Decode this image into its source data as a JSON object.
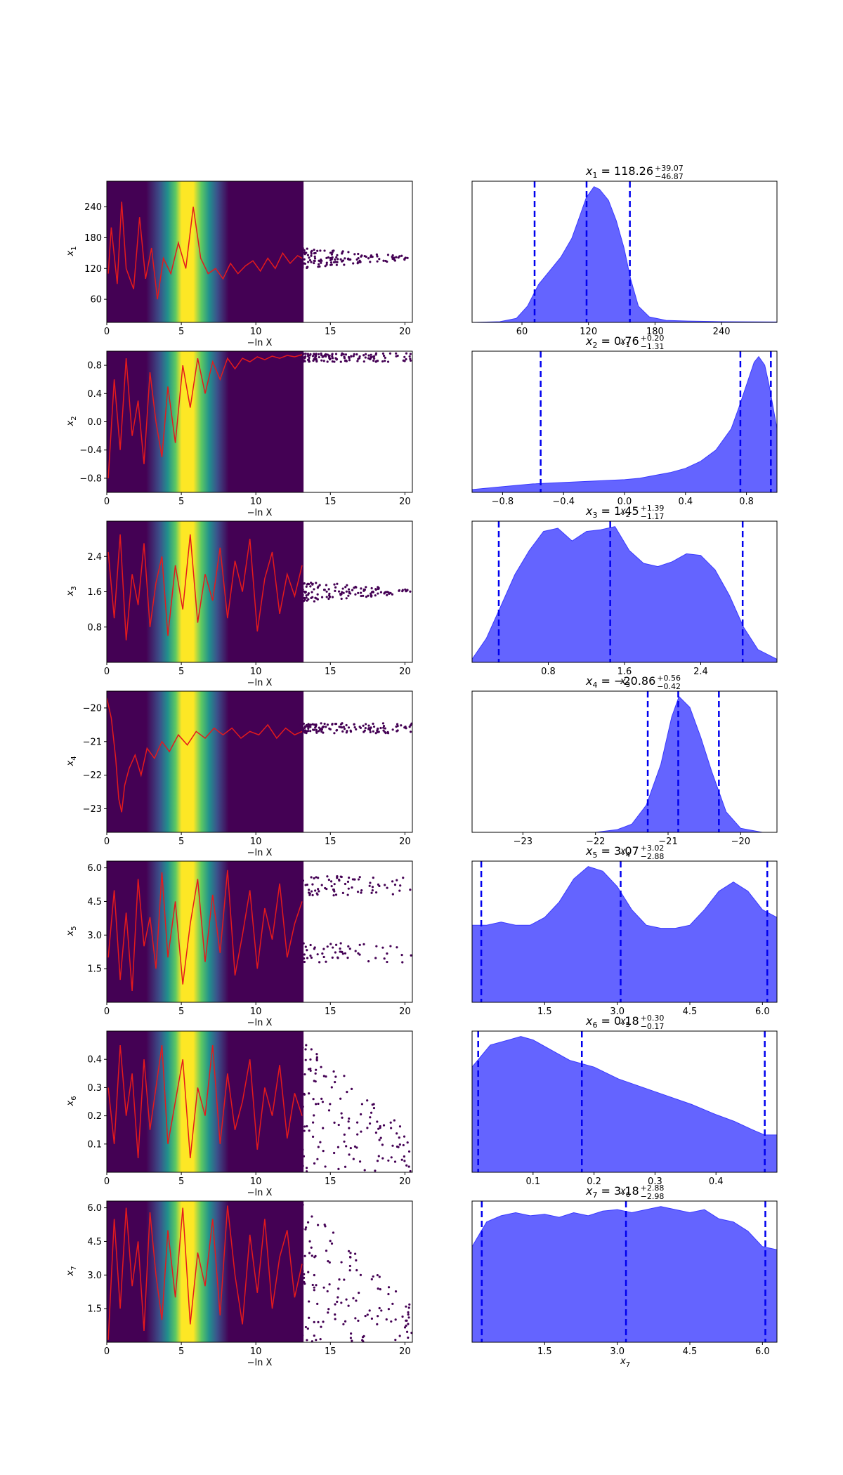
{
  "chart_data": [
    {
      "type": "scatter",
      "param": "x1",
      "xlabel": "−ln X",
      "ylabel": "x1",
      "xlim": [
        0,
        20.5
      ],
      "ylim": [
        15,
        290
      ],
      "xticks": [
        "0",
        "5",
        "10",
        "15",
        "20"
      ],
      "yticks": [
        "60",
        "120",
        "180",
        "240"
      ],
      "trace": [
        [
          0.1,
          110
        ],
        [
          0.3,
          200
        ],
        [
          0.7,
          90
        ],
        [
          1.0,
          250
        ],
        [
          1.3,
          120
        ],
        [
          1.8,
          80
        ],
        [
          2.2,
          220
        ],
        [
          2.6,
          100
        ],
        [
          3.0,
          160
        ],
        [
          3.4,
          60
        ],
        [
          3.8,
          140
        ],
        [
          4.3,
          110
        ],
        [
          4.8,
          170
        ],
        [
          5.3,
          120
        ],
        [
          5.8,
          240
        ],
        [
          6.3,
          140
        ],
        [
          6.8,
          110
        ],
        [
          7.3,
          120
        ],
        [
          7.8,
          100
        ],
        [
          8.3,
          130
        ],
        [
          8.8,
          110
        ],
        [
          9.3,
          125
        ],
        [
          9.8,
          135
        ],
        [
          10.3,
          115
        ],
        [
          10.8,
          140
        ],
        [
          11.3,
          120
        ],
        [
          11.8,
          150
        ],
        [
          12.3,
          130
        ],
        [
          12.8,
          145
        ],
        [
          13.1,
          140
        ]
      ]
    },
    {
      "type": "scatter",
      "param": "x2",
      "xlabel": "−ln X",
      "ylabel": "x2",
      "xlim": [
        0,
        20.5
      ],
      "ylim": [
        -1,
        1
      ],
      "xticks": [
        "0",
        "5",
        "10",
        "15",
        "20"
      ],
      "yticks": [
        "−0.8",
        "−0.4",
        "0.0",
        "0.4",
        "0.8"
      ],
      "trace": [
        [
          0.1,
          -0.8
        ],
        [
          0.5,
          0.6
        ],
        [
          0.9,
          -0.4
        ],
        [
          1.3,
          0.9
        ],
        [
          1.7,
          -0.2
        ],
        [
          2.1,
          0.3
        ],
        [
          2.5,
          -0.6
        ],
        [
          2.9,
          0.7
        ],
        [
          3.3,
          0.0
        ],
        [
          3.7,
          -0.5
        ],
        [
          4.1,
          0.5
        ],
        [
          4.6,
          -0.3
        ],
        [
          5.1,
          0.8
        ],
        [
          5.6,
          0.2
        ],
        [
          6.1,
          0.9
        ],
        [
          6.6,
          0.4
        ],
        [
          7.1,
          0.85
        ],
        [
          7.6,
          0.6
        ],
        [
          8.1,
          0.9
        ],
        [
          8.6,
          0.75
        ],
        [
          9.1,
          0.9
        ],
        [
          9.6,
          0.85
        ],
        [
          10.1,
          0.92
        ],
        [
          10.6,
          0.88
        ],
        [
          11.1,
          0.93
        ],
        [
          11.6,
          0.9
        ],
        [
          12.1,
          0.94
        ],
        [
          12.6,
          0.92
        ],
        [
          13.1,
          0.95
        ]
      ]
    },
    {
      "type": "scatter",
      "param": "x3",
      "xlabel": "−ln X",
      "ylabel": "x3",
      "xlim": [
        0,
        20.5
      ],
      "ylim": [
        0,
        3.2
      ],
      "xticks": [
        "0",
        "5",
        "10",
        "15",
        "20"
      ],
      "yticks": [
        "0.8",
        "1.6",
        "2.4"
      ],
      "trace": [
        [
          0.1,
          2.5
        ],
        [
          0.5,
          1.0
        ],
        [
          0.9,
          2.9
        ],
        [
          1.3,
          0.5
        ],
        [
          1.7,
          2.0
        ],
        [
          2.1,
          1.3
        ],
        [
          2.5,
          2.7
        ],
        [
          2.9,
          0.8
        ],
        [
          3.3,
          1.8
        ],
        [
          3.7,
          2.4
        ],
        [
          4.1,
          0.6
        ],
        [
          4.6,
          2.2
        ],
        [
          5.1,
          1.2
        ],
        [
          5.6,
          2.9
        ],
        [
          6.1,
          0.9
        ],
        [
          6.6,
          2.0
        ],
        [
          7.1,
          1.4
        ],
        [
          7.6,
          2.6
        ],
        [
          8.1,
          1.0
        ],
        [
          8.6,
          2.3
        ],
        [
          9.1,
          1.6
        ],
        [
          9.6,
          2.8
        ],
        [
          10.1,
          0.7
        ],
        [
          10.6,
          1.9
        ],
        [
          11.1,
          2.5
        ],
        [
          11.6,
          1.1
        ],
        [
          12.1,
          2.0
        ],
        [
          12.6,
          1.5
        ],
        [
          13.1,
          2.2
        ]
      ]
    },
    {
      "type": "scatter",
      "param": "x4",
      "xlabel": "−ln X",
      "ylabel": "x4",
      "xlim": [
        0,
        20.5
      ],
      "ylim": [
        -23.7,
        -19.5
      ],
      "xticks": [
        "0",
        "5",
        "10",
        "15",
        "20"
      ],
      "yticks": [
        "−23",
        "−22",
        "−21",
        "−20"
      ],
      "trace": [
        [
          0.0,
          -19.7
        ],
        [
          0.3,
          -20.3
        ],
        [
          0.6,
          -21.5
        ],
        [
          0.8,
          -22.7
        ],
        [
          1.0,
          -23.1
        ],
        [
          1.2,
          -22.3
        ],
        [
          1.5,
          -21.8
        ],
        [
          1.9,
          -21.4
        ],
        [
          2.3,
          -22.0
        ],
        [
          2.7,
          -21.2
        ],
        [
          3.2,
          -21.5
        ],
        [
          3.7,
          -21.0
        ],
        [
          4.2,
          -21.3
        ],
        [
          4.8,
          -20.8
        ],
        [
          5.4,
          -21.1
        ],
        [
          6.0,
          -20.7
        ],
        [
          6.6,
          -20.9
        ],
        [
          7.2,
          -20.6
        ],
        [
          7.8,
          -20.8
        ],
        [
          8.4,
          -20.6
        ],
        [
          9.0,
          -20.9
        ],
        [
          9.6,
          -20.7
        ],
        [
          10.2,
          -20.8
        ],
        [
          10.8,
          -20.5
        ],
        [
          11.4,
          -20.9
        ],
        [
          12.0,
          -20.6
        ],
        [
          12.6,
          -20.8
        ],
        [
          13.1,
          -20.7
        ]
      ]
    },
    {
      "type": "scatter",
      "param": "x5",
      "xlabel": "−ln X",
      "ylabel": "x5",
      "xlim": [
        0,
        20.5
      ],
      "ylim": [
        0,
        6.3
      ],
      "xticks": [
        "0",
        "5",
        "10",
        "15",
        "20"
      ],
      "yticks": [
        "1.5",
        "3.0",
        "4.5",
        "6.0"
      ],
      "trace": [
        [
          0.1,
          2.0
        ],
        [
          0.5,
          5.0
        ],
        [
          0.9,
          1.0
        ],
        [
          1.3,
          4.0
        ],
        [
          1.7,
          0.5
        ],
        [
          2.1,
          5.5
        ],
        [
          2.5,
          2.5
        ],
        [
          2.9,
          3.8
        ],
        [
          3.3,
          1.5
        ],
        [
          3.7,
          5.8
        ],
        [
          4.1,
          2.0
        ],
        [
          4.6,
          4.5
        ],
        [
          5.1,
          0.8
        ],
        [
          5.6,
          3.5
        ],
        [
          6.1,
          5.5
        ],
        [
          6.6,
          1.8
        ],
        [
          7.1,
          4.8
        ],
        [
          7.6,
          2.2
        ],
        [
          8.1,
          5.9
        ],
        [
          8.6,
          1.2
        ],
        [
          9.1,
          3.0
        ],
        [
          9.6,
          5.0
        ],
        [
          10.1,
          1.5
        ],
        [
          10.6,
          4.2
        ],
        [
          11.1,
          2.8
        ],
        [
          11.6,
          5.3
        ],
        [
          12.1,
          2.0
        ],
        [
          12.6,
          3.5
        ],
        [
          13.1,
          4.5
        ]
      ]
    },
    {
      "type": "scatter",
      "param": "x6",
      "xlabel": "−ln X",
      "ylabel": "x6",
      "xlim": [
        0,
        20.5
      ],
      "ylim": [
        0,
        0.5
      ],
      "xticks": [
        "0",
        "5",
        "10",
        "15",
        "20"
      ],
      "yticks": [
        "0.1",
        "0.2",
        "0.3",
        "0.4"
      ],
      "trace": [
        [
          0.1,
          0.3
        ],
        [
          0.5,
          0.1
        ],
        [
          0.9,
          0.45
        ],
        [
          1.3,
          0.2
        ],
        [
          1.7,
          0.35
        ],
        [
          2.1,
          0.05
        ],
        [
          2.5,
          0.4
        ],
        [
          2.9,
          0.15
        ],
        [
          3.3,
          0.3
        ],
        [
          3.7,
          0.45
        ],
        [
          4.1,
          0.1
        ],
        [
          4.6,
          0.25
        ],
        [
          5.1,
          0.4
        ],
        [
          5.6,
          0.05
        ],
        [
          6.1,
          0.3
        ],
        [
          6.6,
          0.2
        ],
        [
          7.1,
          0.45
        ],
        [
          7.6,
          0.1
        ],
        [
          8.1,
          0.35
        ],
        [
          8.6,
          0.15
        ],
        [
          9.1,
          0.25
        ],
        [
          9.6,
          0.4
        ],
        [
          10.1,
          0.08
        ],
        [
          10.6,
          0.3
        ],
        [
          11.1,
          0.2
        ],
        [
          11.6,
          0.38
        ],
        [
          12.1,
          0.12
        ],
        [
          12.6,
          0.28
        ],
        [
          13.1,
          0.2
        ]
      ]
    },
    {
      "type": "scatter",
      "param": "x7",
      "xlabel": "−ln X",
      "ylabel": "x7",
      "xlim": [
        0,
        20.5
      ],
      "ylim": [
        0,
        6.3
      ],
      "xticks": [
        "0",
        "5",
        "10",
        "15",
        "20"
      ],
      "yticks": [
        "1.5",
        "3.0",
        "4.5",
        "6.0"
      ],
      "trace": [
        [
          0.1,
          0.1
        ],
        [
          0.5,
          5.5
        ],
        [
          0.9,
          1.5
        ],
        [
          1.3,
          6.0
        ],
        [
          1.7,
          2.5
        ],
        [
          2.1,
          4.5
        ],
        [
          2.5,
          0.5
        ],
        [
          2.9,
          5.8
        ],
        [
          3.3,
          3.0
        ],
        [
          3.7,
          1.0
        ],
        [
          4.1,
          5.0
        ],
        [
          4.6,
          2.0
        ],
        [
          5.1,
          6.0
        ],
        [
          5.6,
          0.8
        ],
        [
          6.1,
          4.0
        ],
        [
          6.6,
          2.5
        ],
        [
          7.1,
          5.5
        ],
        [
          7.6,
          1.2
        ],
        [
          8.1,
          6.1
        ],
        [
          8.6,
          3.0
        ],
        [
          9.1,
          0.8
        ],
        [
          9.6,
          4.8
        ],
        [
          10.1,
          2.2
        ],
        [
          10.6,
          5.5
        ],
        [
          11.1,
          1.5
        ],
        [
          11.6,
          3.8
        ],
        [
          12.1,
          5.0
        ],
        [
          12.6,
          2.0
        ],
        [
          13.1,
          3.5
        ]
      ]
    },
    {
      "type": "area",
      "param": "x1",
      "xlabel": "x1",
      "title_value": "118.26",
      "title_sup": "+39.07",
      "title_sub": "−46.87",
      "xlim": [
        15,
        290
      ],
      "xticks": [
        "60",
        "120",
        "180",
        "240"
      ],
      "quantiles": [
        71.39,
        118.26,
        157.33
      ],
      "x": [
        15,
        40,
        55,
        65,
        75,
        85,
        95,
        105,
        112,
        118,
        125,
        130,
        138,
        145,
        152,
        158,
        165,
        175,
        190,
        210,
        240,
        290
      ],
      "y": [
        0,
        0.005,
        0.03,
        0.12,
        0.28,
        0.38,
        0.48,
        0.62,
        0.78,
        0.92,
        1.0,
        0.98,
        0.9,
        0.75,
        0.55,
        0.32,
        0.12,
        0.04,
        0.015,
        0.01,
        0.005,
        0.003
      ]
    },
    {
      "type": "area",
      "param": "x2",
      "xlabel": "x2",
      "title_value": "0.76",
      "title_sup": "+0.20",
      "title_sub": "−1.31",
      "xlim": [
        -1,
        1
      ],
      "xticks": [
        "−0.8",
        "−0.4",
        "0.0",
        "0.4",
        "0.8"
      ],
      "quantiles": [
        -0.55,
        0.76,
        0.96
      ],
      "x": [
        -1,
        -0.8,
        -0.6,
        -0.4,
        -0.2,
        0,
        0.1,
        0.2,
        0.3,
        0.4,
        0.5,
        0.6,
        0.7,
        0.75,
        0.8,
        0.85,
        0.88,
        0.92,
        0.95,
        1.0
      ],
      "y": [
        0.02,
        0.04,
        0.06,
        0.07,
        0.08,
        0.09,
        0.1,
        0.12,
        0.14,
        0.17,
        0.22,
        0.3,
        0.45,
        0.6,
        0.76,
        0.92,
        0.96,
        0.9,
        0.75,
        0.45
      ]
    },
    {
      "type": "area",
      "param": "x3",
      "xlabel": "x3",
      "title_value": "1.45",
      "title_sup": "+1.39",
      "title_sub": "−1.17",
      "xlim": [
        0,
        3.2
      ],
      "xticks": [
        "0.8",
        "1.6",
        "2.4"
      ],
      "quantiles": [
        0.28,
        1.45,
        2.84
      ],
      "x": [
        0,
        0.15,
        0.3,
        0.45,
        0.6,
        0.75,
        0.9,
        1.05,
        1.2,
        1.35,
        1.5,
        1.65,
        1.8,
        1.95,
        2.1,
        2.25,
        2.4,
        2.55,
        2.7,
        2.85,
        3.0,
        3.2
      ],
      "y": [
        0.02,
        0.15,
        0.35,
        0.55,
        0.7,
        0.82,
        0.84,
        0.76,
        0.82,
        0.83,
        0.85,
        0.7,
        0.62,
        0.6,
        0.63,
        0.68,
        0.67,
        0.58,
        0.42,
        0.22,
        0.08,
        0.02
      ]
    },
    {
      "type": "area",
      "param": "x4",
      "xlabel": "x4",
      "title_value": "−20.86",
      "title_sup": "+0.56",
      "title_sub": "−0.42",
      "xlim": [
        -23.7,
        -19.5
      ],
      "xticks": [
        "−23",
        "−22",
        "−21",
        "−20"
      ],
      "quantiles": [
        -21.28,
        -20.86,
        -20.3
      ],
      "x": [
        -23.7,
        -22.0,
        -21.7,
        -21.5,
        -21.3,
        -21.1,
        -20.95,
        -20.85,
        -20.7,
        -20.55,
        -20.4,
        -20.2,
        -20.0,
        -19.7,
        -19.5
      ],
      "y": [
        0,
        0,
        0.02,
        0.06,
        0.2,
        0.5,
        0.85,
        1.0,
        0.92,
        0.7,
        0.45,
        0.15,
        0.03,
        0,
        0
      ]
    },
    {
      "type": "area",
      "param": "x5",
      "xlabel": "x5",
      "title_value": "3.07",
      "title_sup": "+3.02",
      "title_sub": "−2.88",
      "xlim": [
        0,
        6.3
      ],
      "xticks": [
        "1.5",
        "3.0",
        "4.5",
        "6.0"
      ],
      "quantiles": [
        0.19,
        3.07,
        6.1
      ],
      "x": [
        0,
        0.3,
        0.6,
        0.9,
        1.2,
        1.5,
        1.8,
        2.1,
        2.4,
        2.7,
        3.0,
        3.3,
        3.6,
        3.9,
        4.2,
        4.5,
        4.8,
        5.1,
        5.4,
        5.7,
        6.0,
        6.3
      ],
      "y": [
        0.5,
        0.5,
        0.52,
        0.5,
        0.5,
        0.55,
        0.65,
        0.8,
        0.88,
        0.85,
        0.75,
        0.6,
        0.5,
        0.48,
        0.48,
        0.5,
        0.6,
        0.72,
        0.78,
        0.72,
        0.6,
        0.55
      ]
    },
    {
      "type": "area",
      "param": "x6",
      "xlabel": "x6",
      "title_value": "0.18",
      "title_sup": "+0.30",
      "title_sub": "−0.17",
      "xlim": [
        0,
        0.5
      ],
      "xticks": [
        "0.1",
        "0.2",
        "0.3",
        "0.4"
      ],
      "quantiles": [
        0.01,
        0.18,
        0.48
      ],
      "x": [
        0,
        0.03,
        0.06,
        0.08,
        0.1,
        0.13,
        0.16,
        0.2,
        0.24,
        0.28,
        0.32,
        0.36,
        0.4,
        0.43,
        0.46,
        0.48,
        0.5
      ],
      "y": [
        0.62,
        0.75,
        0.78,
        0.8,
        0.78,
        0.72,
        0.66,
        0.62,
        0.55,
        0.5,
        0.45,
        0.4,
        0.34,
        0.3,
        0.25,
        0.22,
        0.22
      ]
    },
    {
      "type": "area",
      "param": "x7",
      "xlabel": "x7",
      "title_value": "3.18",
      "title_sup": "+2.88",
      "title_sub": "−2.98",
      "xlim": [
        0,
        6.3
      ],
      "xticks": [
        "1.5",
        "3.0",
        "4.5",
        "6.0"
      ],
      "quantiles": [
        0.2,
        3.18,
        6.06
      ],
      "x": [
        0,
        0.3,
        0.6,
        0.9,
        1.2,
        1.5,
        1.8,
        2.1,
        2.4,
        2.7,
        3.0,
        3.3,
        3.6,
        3.9,
        4.2,
        4.5,
        4.8,
        5.1,
        5.4,
        5.7,
        6.0,
        6.3
      ],
      "y": [
        0.62,
        0.78,
        0.82,
        0.84,
        0.82,
        0.83,
        0.81,
        0.84,
        0.82,
        0.85,
        0.86,
        0.84,
        0.86,
        0.88,
        0.86,
        0.84,
        0.86,
        0.8,
        0.78,
        0.72,
        0.62,
        0.6
      ]
    }
  ]
}
